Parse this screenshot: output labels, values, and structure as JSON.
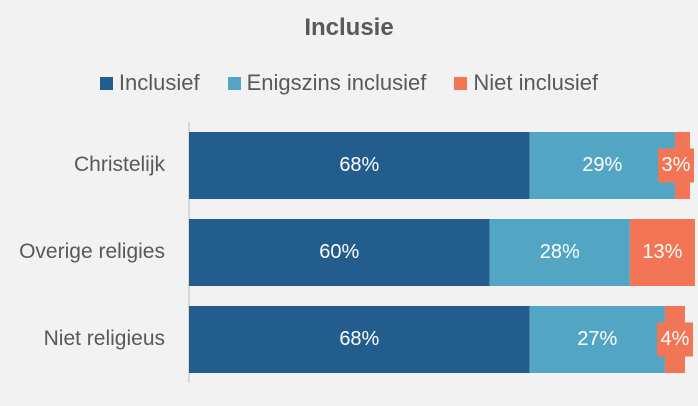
{
  "chart_data": {
    "type": "bar",
    "orientation": "horizontal",
    "stacked": true,
    "title": "Inclusie",
    "categories": [
      "Christelijk",
      "Overige religies",
      "Niet religieus"
    ],
    "series": [
      {
        "name": "Inclusief",
        "color": "#235d8d",
        "values": [
          68,
          60,
          68
        ],
        "labels": [
          "68%",
          "60%",
          "68%"
        ]
      },
      {
        "name": "Enigszins inclusief",
        "color": "#52a6c4",
        "values": [
          29,
          28,
          27
        ],
        "labels": [
          "29%",
          "28%",
          "27%"
        ]
      },
      {
        "name": "Niet inclusief",
        "color": "#f27656",
        "values": [
          3,
          13,
          4
        ],
        "labels": [
          "3%",
          "13%",
          "4%"
        ]
      }
    ],
    "xlim": [
      0,
      100
    ],
    "legend_position": "top",
    "grid": false
  }
}
